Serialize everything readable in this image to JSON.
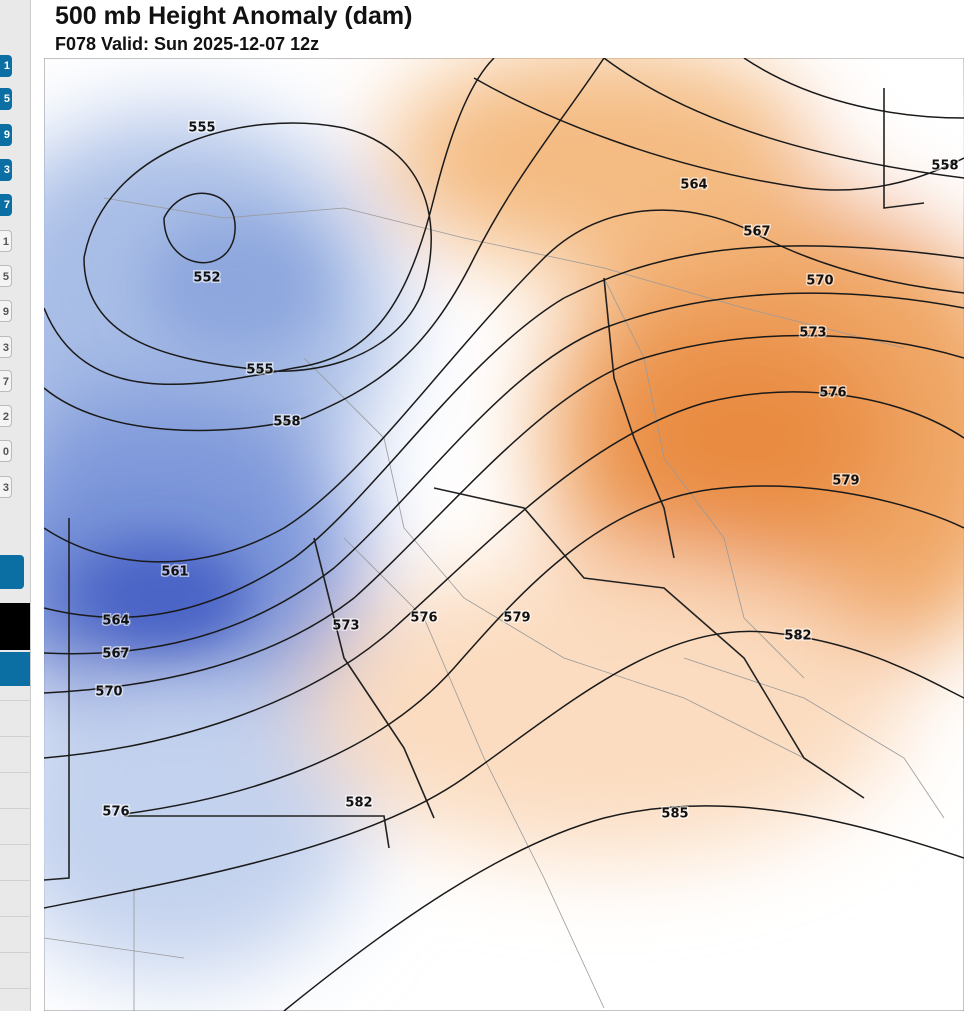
{
  "title": "500 mb Height Anomaly (dam)",
  "subtitle": "F078 Valid: Sun 2025-12-07 12z",
  "sidebar": {
    "buttons": [
      "1",
      "5",
      "9",
      "3",
      "7",
      "1",
      "5",
      "9",
      "3",
      "7",
      "2",
      "0",
      "3"
    ]
  },
  "map": {
    "contour_labels": [
      "555",
      "552",
      "555",
      "558",
      "561",
      "564",
      "567",
      "570",
      "576",
      "573",
      "576",
      "579",
      "582",
      "585",
      "582",
      "579",
      "576",
      "573",
      "570",
      "567",
      "564",
      "558"
    ]
  }
}
